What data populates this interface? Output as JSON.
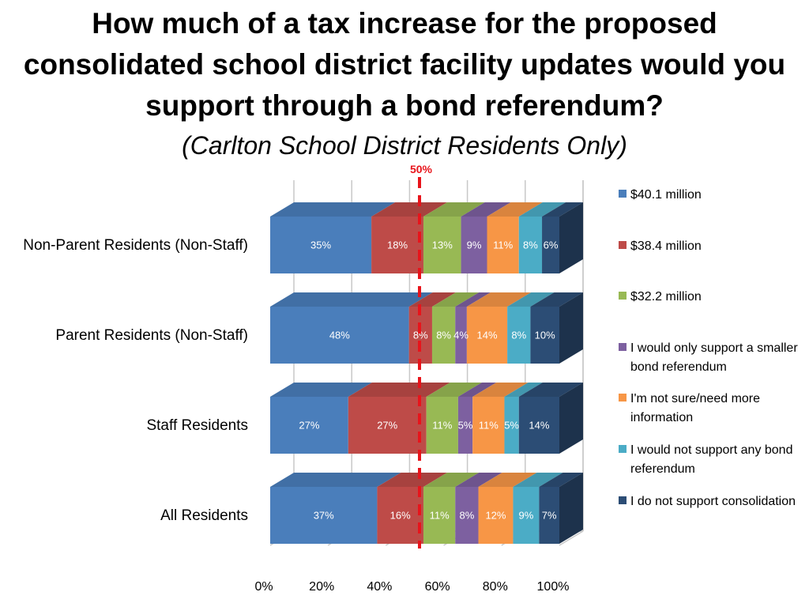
{
  "title": "How much of a tax increase for the proposed consolidated school district facility updates would you support through a bond referendum?",
  "subtitle": "(Carlton School District Residents Only)",
  "chart_data": {
    "type": "bar",
    "orientation": "horizontal",
    "stacked": "percent",
    "three_d": true,
    "categories": [
      "Non-Parent Residents (Non-Staff)",
      "Parent Residents (Non-Staff)",
      "Staff Residents",
      "All Residents"
    ],
    "series": [
      {
        "name": "$40.1 million",
        "color": "#4a7ebb",
        "values": [
          35,
          48,
          27,
          37
        ],
        "labels": [
          "35%",
          "48%",
          "27%",
          "37%"
        ]
      },
      {
        "name": "$38.4 million",
        "color": "#be4b48",
        "values": [
          18,
          8,
          27,
          16
        ],
        "labels": [
          "18%",
          "8%",
          "27%",
          "16%"
        ]
      },
      {
        "name": "$32.2 million",
        "color": "#98b954",
        "values": [
          13,
          8,
          11,
          11
        ],
        "labels": [
          "13%",
          "8%",
          "11%",
          "11%"
        ]
      },
      {
        "name": "I would only support a smaller bond referendum",
        "color": "#7d60a0",
        "values": [
          9,
          4,
          5,
          8
        ],
        "labels": [
          "9%",
          "4%",
          "5%",
          "8%"
        ]
      },
      {
        "name": "I'm not sure/need more information",
        "color": "#f79646",
        "values": [
          11,
          14,
          11,
          12
        ],
        "labels": [
          "11%",
          "14%",
          "11%",
          "12%"
        ]
      },
      {
        "name": "I would not support any bond referendum",
        "color": "#4bacc6",
        "values": [
          8,
          8,
          5,
          9
        ],
        "labels": [
          "8%",
          "8%",
          "5%",
          "9%"
        ]
      },
      {
        "name": "I do not support consolidation",
        "color": "#2c4d75",
        "values": [
          6,
          10,
          14,
          7
        ],
        "labels": [
          "6%",
          "10%",
          "14%",
          "7%"
        ]
      }
    ],
    "x_ticks": [
      "0%",
      "20%",
      "40%",
      "60%",
      "80%",
      "100%"
    ],
    "xlim": [
      0,
      100
    ],
    "reference_line": {
      "value": 50,
      "label": "50%",
      "color": "#e8141b",
      "style": "dashed"
    },
    "grid": true,
    "legend": "right"
  }
}
